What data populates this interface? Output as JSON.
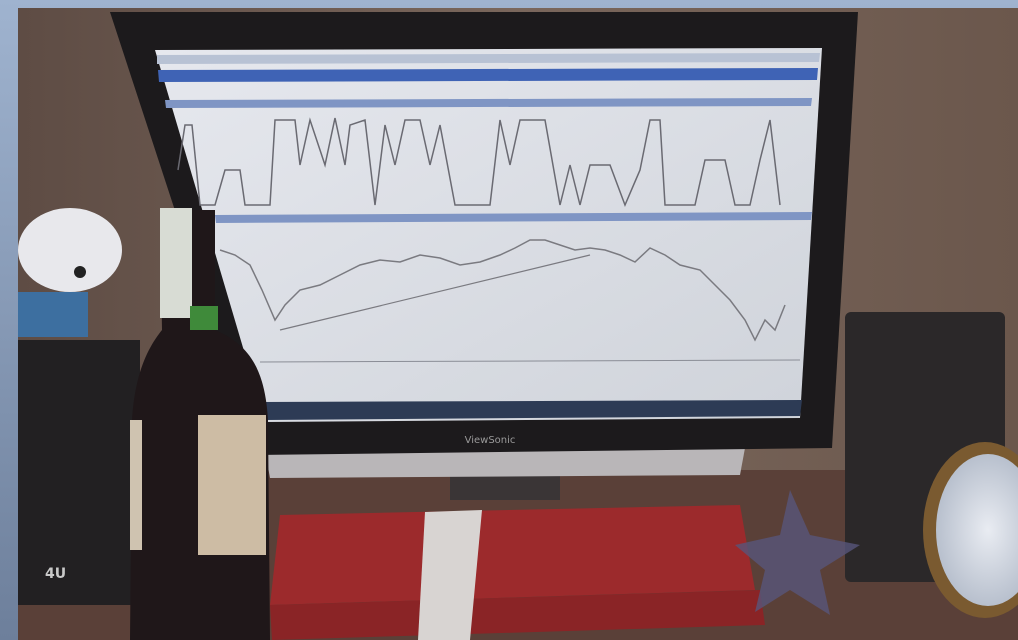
{
  "monitor_brand": "ViewSonic",
  "speaker_label": "4U"
}
